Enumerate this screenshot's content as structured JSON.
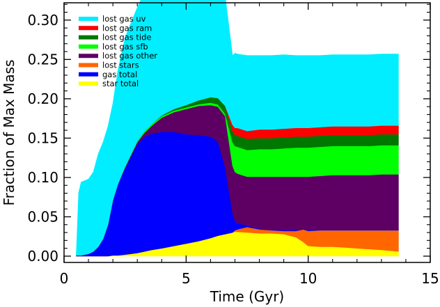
{
  "chart_data": {
    "type": "area",
    "xlabel": "Time (Gyr)",
    "ylabel": "Fraction of Max Mass",
    "xlim": [
      0,
      15
    ],
    "ylim": [
      -0.008,
      0.322
    ],
    "xticks": [
      "0",
      "5",
      "10",
      "15"
    ],
    "yticks": [
      "0.00",
      "0.05",
      "0.10",
      "0.15",
      "0.20",
      "0.25",
      "0.30"
    ],
    "grid": false,
    "legend": "top-left",
    "legend_order": [
      "lost gas uv",
      "lost gas ram",
      "lost gas tide",
      "lost gas sfb",
      "lost gas other",
      "lost stars",
      "gas total",
      "star total"
    ],
    "x": [
      0.5,
      0.6,
      0.7,
      1.0,
      1.2,
      1.4,
      1.6,
      1.8,
      2.0,
      2.2,
      2.5,
      3.0,
      3.3,
      3.6,
      4.0,
      4.5,
      5.0,
      5.5,
      6.0,
      6.3,
      6.6,
      6.9,
      7.0,
      7.1,
      7.5,
      8.0,
      8.5,
      9.0,
      9.5,
      9.8,
      10.0,
      10.5,
      11.0,
      11.5,
      12.0,
      12.5,
      13.0,
      13.7
    ],
    "series": [
      {
        "name": "star total",
        "color": "#ffff00",
        "values": [
          0,
          0,
          0,
          0,
          0,
          0,
          0,
          0,
          0.001,
          0.001,
          0.002,
          0.004,
          0.006,
          0.008,
          0.01,
          0.013,
          0.016,
          0.019,
          0.023,
          0.026,
          0.028,
          0.03,
          0.031,
          0.031,
          0.03,
          0.029,
          0.029,
          0.028,
          0.024,
          0.018,
          0.013,
          0.012,
          0.012,
          0.011,
          0.01,
          0.009,
          0.008,
          0.006
        ]
      },
      {
        "name": "lost stars",
        "color": "#ff6600",
        "values": [
          0,
          0,
          0,
          0,
          0,
          0,
          0,
          0,
          0,
          0,
          0,
          0,
          0,
          0,
          0,
          0,
          0,
          0,
          0,
          0,
          0,
          0,
          0.002,
          0.003,
          0.007,
          0.005,
          0.004,
          0.004,
          0.008,
          0.016,
          0.019,
          0.021,
          0.021,
          0.022,
          0.023,
          0.024,
          0.025,
          0.027
        ]
      },
      {
        "name": "gas total",
        "color": "#0000ff",
        "values": [
          0.001,
          0.001,
          0.001,
          0.003,
          0.006,
          0.012,
          0.022,
          0.04,
          0.07,
          0.09,
          0.11,
          0.138,
          0.146,
          0.148,
          0.148,
          0.145,
          0.139,
          0.135,
          0.129,
          0.12,
          0.085,
          0.025,
          0.012,
          0.008,
          0.002,
          0.001,
          0.001,
          0.001,
          0.001,
          0.001,
          0.001,
          0.001,
          0.001,
          0.001,
          0.001,
          0.001,
          0.001,
          0.001
        ]
      },
      {
        "name": "lost gas other",
        "color": "#5e0063",
        "values": [
          0,
          0,
          0,
          0,
          0,
          0,
          0,
          0,
          0,
          0,
          0.001,
          0.003,
          0.005,
          0.01,
          0.018,
          0.025,
          0.032,
          0.037,
          0.04,
          0.044,
          0.065,
          0.06,
          0.062,
          0.063,
          0.062,
          0.066,
          0.067,
          0.068,
          0.068,
          0.066,
          0.068,
          0.068,
          0.069,
          0.069,
          0.069,
          0.069,
          0.07,
          0.07
        ]
      },
      {
        "name": "lost gas sfb",
        "color": "#00ff00",
        "values": [
          0,
          0,
          0,
          0,
          0,
          0,
          0,
          0,
          0,
          0,
          0.001,
          0.001,
          0.002,
          0.002,
          0.002,
          0.002,
          0.002,
          0.002,
          0.003,
          0.003,
          0.003,
          0.03,
          0.033,
          0.034,
          0.034,
          0.035,
          0.035,
          0.036,
          0.037,
          0.037,
          0.037,
          0.037,
          0.037,
          0.037,
          0.037,
          0.037,
          0.037,
          0.037
        ]
      },
      {
        "name": "lost gas tide",
        "color": "#007700",
        "values": [
          0,
          0,
          0,
          0,
          0,
          0,
          0,
          0,
          0,
          0,
          0,
          0,
          0,
          0,
          0.001,
          0.002,
          0.003,
          0.005,
          0.007,
          0.008,
          0.01,
          0.014,
          0.014,
          0.014,
          0.014,
          0.014,
          0.014,
          0.014,
          0.014,
          0.014,
          0.014,
          0.014,
          0.014,
          0.014,
          0.014,
          0.014,
          0.014,
          0.014
        ]
      },
      {
        "name": "lost gas ram",
        "color": "#ff0000",
        "values": [
          0,
          0,
          0,
          0,
          0,
          0,
          0,
          0,
          0,
          0,
          0,
          0,
          0,
          0,
          0,
          0,
          0,
          0,
          0,
          0,
          0,
          0.008,
          0.009,
          0.01,
          0.01,
          0.011,
          0.011,
          0.011,
          0.011,
          0.011,
          0.011,
          0.011,
          0.011,
          0.011,
          0.011,
          0.011,
          0.011,
          0.011
        ]
      },
      {
        "name": "lost gas uv",
        "color": "#00eeff",
        "values": [
          0.001,
          0.08,
          0.093,
          0.095,
          0.101,
          0.118,
          0.123,
          0.125,
          0.123,
          0.144,
          0.164,
          0.17,
          0.177,
          0.181,
          0.183,
          0.181,
          0.184,
          0.185,
          0.19,
          0.184,
          0.14,
          0.088,
          0.095,
          0.094,
          0.096,
          0.094,
          0.094,
          0.094,
          0.092,
          0.092,
          0.092,
          0.091,
          0.091,
          0.091,
          0.091,
          0.091,
          0.091,
          0.091
        ]
      }
    ]
  }
}
